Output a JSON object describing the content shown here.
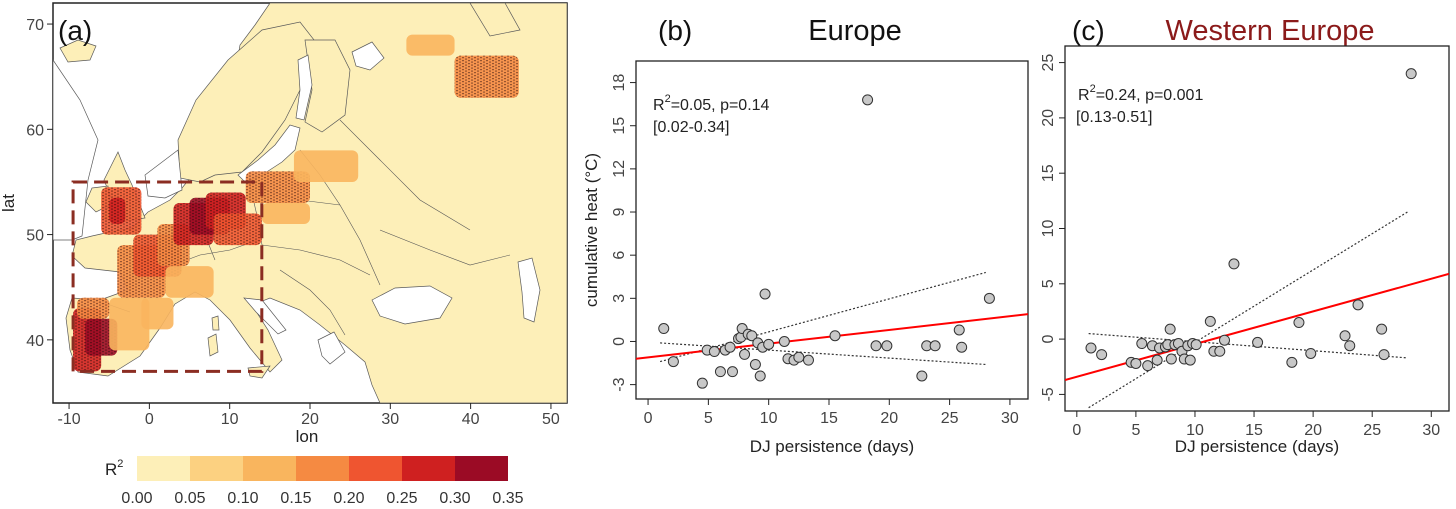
{
  "chart_data": [
    {
      "type": "heatmap",
      "panel_label": "(a)",
      "xlabel": "lon",
      "ylabel": "lat",
      "xlim": [
        -12,
        52
      ],
      "ylim": [
        34,
        72
      ],
      "xticks": [
        -10,
        0,
        10,
        20,
        30,
        40,
        50
      ],
      "yticks": [
        40,
        50,
        60,
        70
      ],
      "colorbar": {
        "label": "R",
        "label_sup": "2",
        "ticks": [
          "0.00",
          "0.05",
          "0.10",
          "0.15",
          "0.20",
          "0.25",
          "0.30",
          "0.35"
        ],
        "colors": [
          "#fdefb8",
          "#fcd181",
          "#f9b55e",
          "#f58a42",
          "#ef5530",
          "#cf2020",
          "#9b0b25"
        ]
      },
      "box": {
        "lon": [
          -9.5,
          14
        ],
        "lat": [
          37,
          55
        ],
        "color": "#8b2d22"
      }
    },
    {
      "type": "scatter",
      "panel_label": "(b)",
      "title": "Europe",
      "title_color": "#111111",
      "xlabel": "DJ persistence (days)",
      "ylabel": "cumulative heat  (°C)",
      "xlim": [
        -1,
        31.5
      ],
      "ylim": [
        -4,
        19.5
      ],
      "xticks": [
        0,
        5,
        10,
        15,
        20,
        25,
        30
      ],
      "yticks": [
        -3,
        0,
        3,
        6,
        9,
        12,
        15,
        18
      ],
      "stats": {
        "r2_prefix": "R",
        "r2_sup": "2",
        "line1": "=0.05, p=0.14",
        "line2": "[0.02-0.34]"
      },
      "regression": {
        "color": "#ff0000",
        "x": [
          -1,
          31.5
        ],
        "y": [
          -1.2,
          1.9
        ]
      },
      "ci_upper": {
        "x": [
          1,
          28
        ],
        "y": [
          -1.4,
          4.8
        ]
      },
      "ci_lower": {
        "x": [
          1,
          28
        ],
        "y": [
          -0.1,
          -1.6
        ]
      },
      "points": {
        "x": [
          1.3,
          2.1,
          4.5,
          4.9,
          5.5,
          6.0,
          6.4,
          6.8,
          7.0,
          7.5,
          7.7,
          7.8,
          8.0,
          8.3,
          8.6,
          8.9,
          9.1,
          9.3,
          9.5,
          9.7,
          10.0,
          11.3,
          11.6,
          12.1,
          12.5,
          13.3,
          15.5,
          18.2,
          18.9,
          19.8,
          22.7,
          23.1,
          23.8,
          25.8,
          26.0,
          28.3
        ],
        "y": [
          0.9,
          -1.4,
          -2.9,
          -0.6,
          -0.7,
          -2.1,
          -0.6,
          -0.4,
          -2.1,
          0.2,
          0.3,
          0.9,
          -0.9,
          0.5,
          0.4,
          -1.6,
          -0.1,
          -2.4,
          -0.4,
          3.3,
          -0.2,
          0.0,
          -1.2,
          -1.3,
          -1.1,
          -1.3,
          0.4,
          16.8,
          -0.3,
          -0.3,
          -2.4,
          -0.3,
          -0.3,
          0.8,
          -0.4,
          3.0
        ]
      }
    },
    {
      "type": "scatter",
      "panel_label": "(c)",
      "title": "Western Europe",
      "title_color": "#8b1a1a",
      "xlabel": "DJ persistence (days)",
      "ylabel": "",
      "xlim": [
        -1,
        31.5
      ],
      "ylim": [
        -6.5,
        26.5
      ],
      "xticks": [
        0,
        5,
        10,
        15,
        20,
        25,
        30
      ],
      "yticks": [
        -5,
        0,
        5,
        10,
        15,
        20,
        25
      ],
      "stats": {
        "r2_prefix": "R",
        "r2_sup": "2",
        "line1": "=0.24, p=0.001",
        "line2": "[0.13-0.51]"
      },
      "regression": {
        "color": "#ff0000",
        "x": [
          -1,
          31.5
        ],
        "y": [
          -3.7,
          5.9
        ]
      },
      "ci_upper": {
        "x": [
          1,
          28
        ],
        "y": [
          -6.2,
          11.5
        ]
      },
      "ci_lower": {
        "x": [
          1,
          28
        ],
        "y": [
          0.5,
          -1.7
        ]
      },
      "points": {
        "x": [
          1.2,
          2.1,
          4.6,
          5.0,
          5.5,
          6.0,
          6.4,
          6.8,
          7.0,
          7.5,
          7.7,
          7.9,
          8.0,
          8.3,
          8.6,
          8.9,
          9.1,
          9.4,
          9.6,
          9.8,
          10.1,
          11.3,
          11.6,
          12.1,
          12.5,
          13.3,
          15.3,
          18.2,
          18.8,
          19.8,
          22.7,
          23.1,
          23.8,
          25.8,
          26.0,
          28.3
        ],
        "y": [
          -0.8,
          -1.4,
          -2.1,
          -2.2,
          -0.4,
          -2.4,
          -0.6,
          -1.9,
          -0.8,
          -0.7,
          -0.5,
          0.9,
          -1.8,
          -0.5,
          -0.4,
          -1.1,
          -1.8,
          -0.6,
          -1.9,
          -0.4,
          -0.5,
          1.6,
          -1.1,
          -1.1,
          -0.1,
          6.8,
          -0.3,
          -2.1,
          1.5,
          -1.3,
          0.3,
          -0.6,
          3.1,
          0.9,
          -1.4,
          24.0
        ]
      }
    }
  ]
}
